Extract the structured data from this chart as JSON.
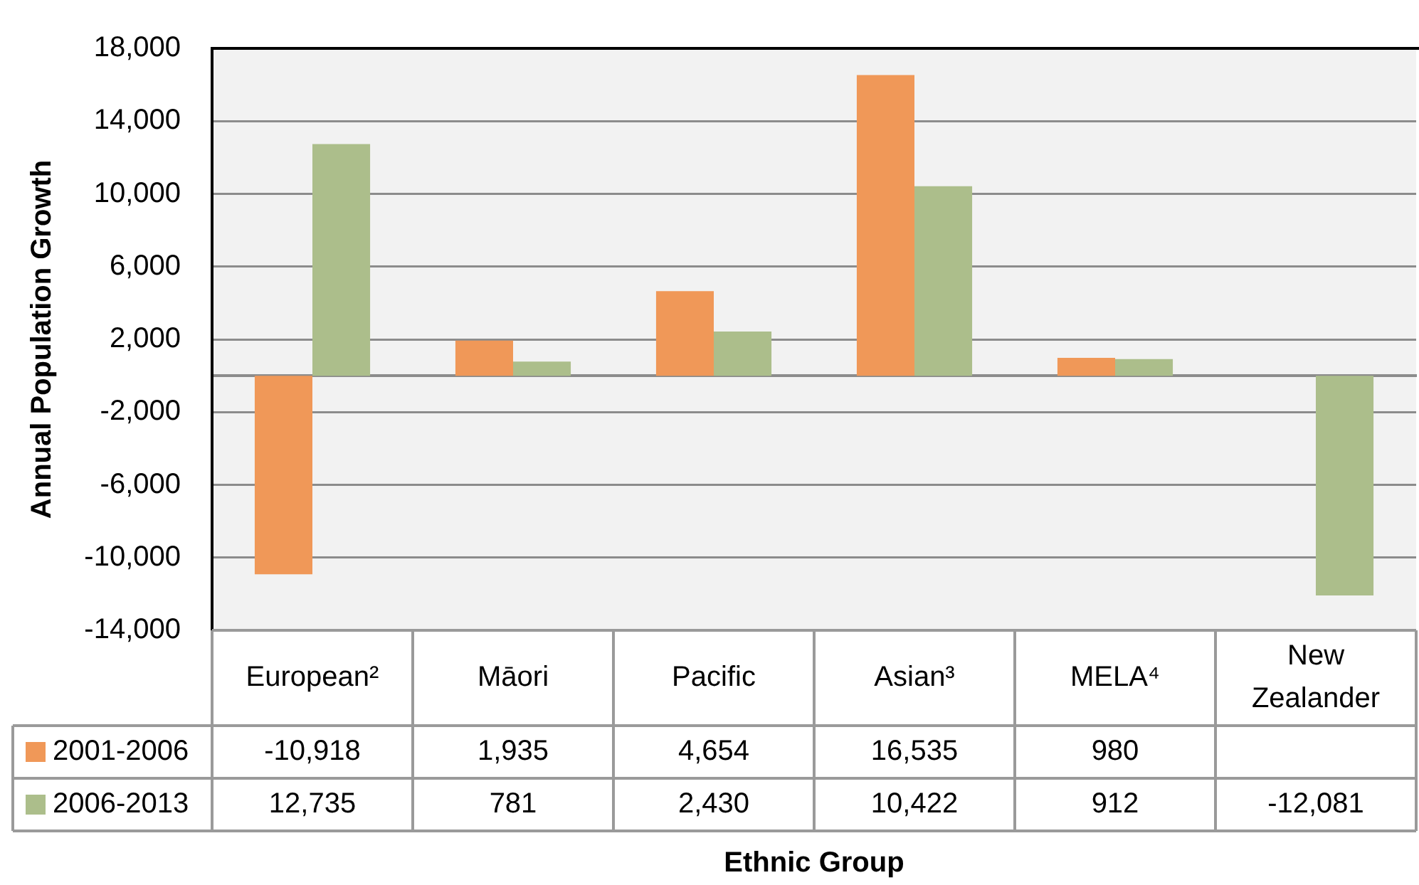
{
  "chart_data": {
    "type": "bar",
    "xlabel": "Ethnic Group",
    "ylabel": "Annual Population Growth",
    "categories": [
      "European²",
      "Māori",
      "Pacific",
      "Asian³",
      "MELA⁴",
      "New Zealander"
    ],
    "series": [
      {
        "name": "2001-2006",
        "color": "#f09858",
        "values": [
          -10918,
          1935,
          4654,
          16535,
          980,
          null
        ],
        "value_labels": [
          "-10,918",
          "1,935",
          "4,654",
          "16,535",
          "980",
          null
        ]
      },
      {
        "name": "2006-2013",
        "color": "#acbe8b",
        "values": [
          12735,
          781,
          2430,
          10422,
          912,
          -12081
        ],
        "value_labels": [
          "12,735",
          "781",
          "2,430",
          "10,422",
          "912",
          "-12,081"
        ]
      }
    ],
    "ylim": [
      -14000,
      18000
    ],
    "yticks": [
      {
        "value": -14000,
        "label": "-14,000"
      },
      {
        "value": -10000,
        "label": "-10,000"
      },
      {
        "value": -6000,
        "label": "-6,000"
      },
      {
        "value": -2000,
        "label": "-2,000"
      },
      {
        "value": 2000,
        "label": "2,000"
      },
      {
        "value": 6000,
        "label": "6,000"
      },
      {
        "value": 10000,
        "label": "10,000"
      },
      {
        "value": 14000,
        "label": "14,000"
      },
      {
        "value": 18000,
        "label": "18,000"
      }
    ],
    "grid": "y",
    "legend": "bottom left"
  }
}
